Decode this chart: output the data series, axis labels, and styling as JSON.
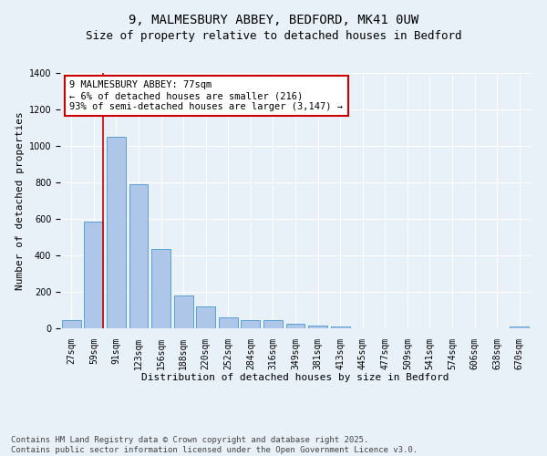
{
  "title": "9, MALMESBURY ABBEY, BEDFORD, MK41 0UW",
  "subtitle": "Size of property relative to detached houses in Bedford",
  "xlabel": "Distribution of detached houses by size in Bedford",
  "ylabel": "Number of detached properties",
  "categories": [
    "27sqm",
    "59sqm",
    "91sqm",
    "123sqm",
    "156sqm",
    "188sqm",
    "220sqm",
    "252sqm",
    "284sqm",
    "316sqm",
    "349sqm",
    "381sqm",
    "413sqm",
    "445sqm",
    "477sqm",
    "509sqm",
    "541sqm",
    "574sqm",
    "606sqm",
    "638sqm",
    "670sqm"
  ],
  "values": [
    47,
    585,
    1048,
    790,
    435,
    182,
    120,
    62,
    47,
    47,
    25,
    15,
    10,
    0,
    0,
    0,
    0,
    0,
    0,
    0,
    12
  ],
  "bar_color": "#aec6e8",
  "bar_edge_color": "#5a9fd4",
  "vline_color": "#cc0000",
  "vline_x_pos": 1.42,
  "annotation_text": "9 MALMESBURY ABBEY: 77sqm\n← 6% of detached houses are smaller (216)\n93% of semi-detached houses are larger (3,147) →",
  "annotation_box_color": "#ffffff",
  "annotation_box_edge": "#cc0000",
  "ylim": [
    0,
    1400
  ],
  "yticks": [
    0,
    200,
    400,
    600,
    800,
    1000,
    1200,
    1400
  ],
  "background_color": "#e8f0f8",
  "footer_line1": "Contains HM Land Registry data © Crown copyright and database right 2025.",
  "footer_line2": "Contains public sector information licensed under the Open Government Licence v3.0.",
  "title_fontsize": 10,
  "subtitle_fontsize": 9,
  "axis_label_fontsize": 8,
  "tick_fontsize": 7,
  "annotation_fontsize": 7.5,
  "footer_fontsize": 6.5
}
